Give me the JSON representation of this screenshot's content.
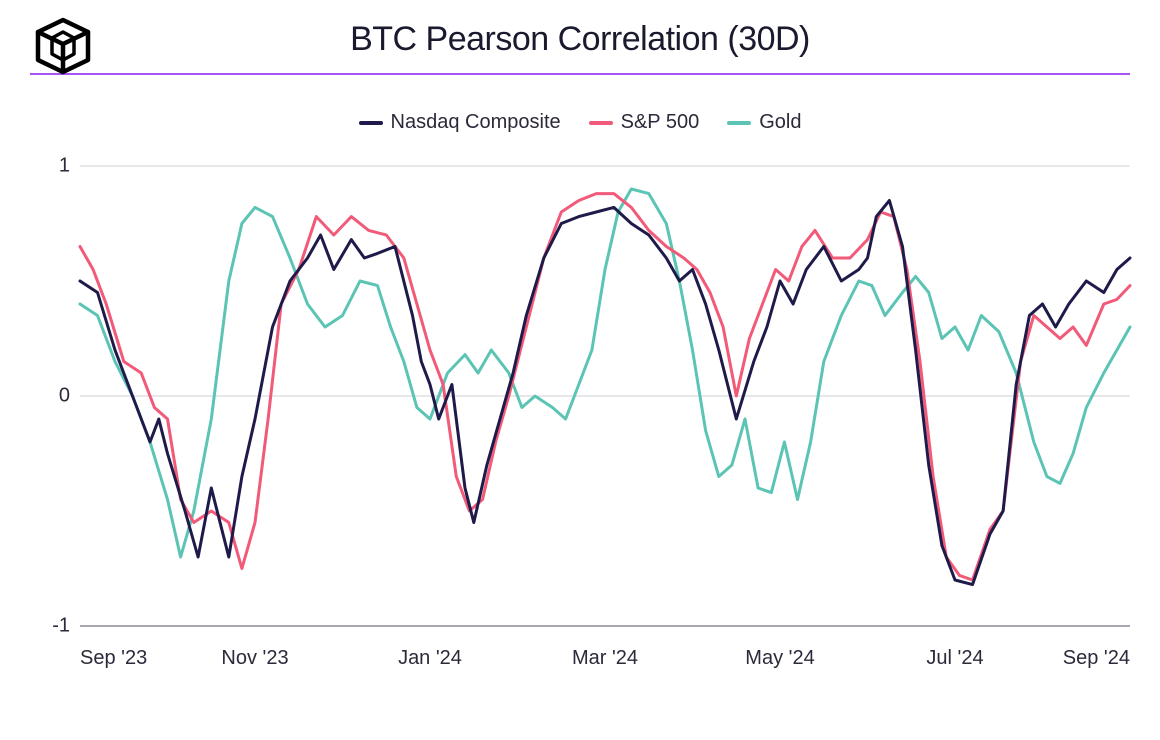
{
  "title": "BTC Pearson Correlation (30D)",
  "header_underline_color": "#a855f7",
  "legend": [
    {
      "label": "Nasdaq Composite",
      "color": "#1e1b4b"
    },
    {
      "label": "S&P 500",
      "color": "#f15a78"
    },
    {
      "label": "Gold",
      "color": "#5bc4b4"
    }
  ],
  "chart": {
    "type": "line",
    "ylim": [
      -1,
      1
    ],
    "yticks": [
      -1,
      0,
      1
    ],
    "ytick_labels": [
      "-1",
      "0",
      "1"
    ],
    "xlim": [
      0,
      12
    ],
    "xtick_positions": [
      0,
      2,
      4,
      6,
      8,
      10,
      12
    ],
    "xtick_labels": [
      "Sep '23",
      "Nov '23",
      "Jan '24",
      "Mar '24",
      "May '24",
      "Jul '24",
      "Sep '24"
    ],
    "grid_color": "#d0d0d8",
    "axis_color": "#8a8a9a",
    "background_color": "#ffffff",
    "line_width": 3,
    "title_fontsize": 34,
    "label_fontsize": 20,
    "series": [
      {
        "name": "Nasdaq Composite",
        "color": "#1e1b4b",
        "points": [
          [
            0.0,
            0.5
          ],
          [
            0.2,
            0.45
          ],
          [
            0.4,
            0.2
          ],
          [
            0.6,
            0.0
          ],
          [
            0.8,
            -0.2
          ],
          [
            0.9,
            -0.1
          ],
          [
            1.0,
            -0.25
          ],
          [
            1.2,
            -0.5
          ],
          [
            1.35,
            -0.7
          ],
          [
            1.5,
            -0.4
          ],
          [
            1.7,
            -0.7
          ],
          [
            1.85,
            -0.35
          ],
          [
            2.0,
            -0.1
          ],
          [
            2.2,
            0.3
          ],
          [
            2.4,
            0.5
          ],
          [
            2.6,
            0.6
          ],
          [
            2.75,
            0.7
          ],
          [
            2.9,
            0.55
          ],
          [
            3.1,
            0.68
          ],
          [
            3.25,
            0.6
          ],
          [
            3.4,
            0.62
          ],
          [
            3.6,
            0.65
          ],
          [
            3.8,
            0.35
          ],
          [
            3.9,
            0.15
          ],
          [
            4.0,
            0.05
          ],
          [
            4.1,
            -0.1
          ],
          [
            4.25,
            0.05
          ],
          [
            4.4,
            -0.4
          ],
          [
            4.5,
            -0.55
          ],
          [
            4.65,
            -0.3
          ],
          [
            4.8,
            -0.1
          ],
          [
            4.95,
            0.1
          ],
          [
            5.1,
            0.35
          ],
          [
            5.3,
            0.6
          ],
          [
            5.5,
            0.75
          ],
          [
            5.7,
            0.78
          ],
          [
            5.9,
            0.8
          ],
          [
            6.1,
            0.82
          ],
          [
            6.3,
            0.75
          ],
          [
            6.5,
            0.7
          ],
          [
            6.7,
            0.6
          ],
          [
            6.85,
            0.5
          ],
          [
            7.0,
            0.55
          ],
          [
            7.15,
            0.4
          ],
          [
            7.3,
            0.2
          ],
          [
            7.5,
            -0.1
          ],
          [
            7.7,
            0.15
          ],
          [
            7.85,
            0.3
          ],
          [
            8.0,
            0.5
          ],
          [
            8.15,
            0.4
          ],
          [
            8.3,
            0.55
          ],
          [
            8.5,
            0.65
          ],
          [
            8.7,
            0.5
          ],
          [
            8.9,
            0.55
          ],
          [
            9.0,
            0.6
          ],
          [
            9.1,
            0.78
          ],
          [
            9.25,
            0.85
          ],
          [
            9.4,
            0.65
          ],
          [
            9.55,
            0.2
          ],
          [
            9.7,
            -0.3
          ],
          [
            9.85,
            -0.65
          ],
          [
            10.0,
            -0.8
          ],
          [
            10.2,
            -0.82
          ],
          [
            10.4,
            -0.6
          ],
          [
            10.55,
            -0.5
          ],
          [
            10.7,
            0.05
          ],
          [
            10.85,
            0.35
          ],
          [
            11.0,
            0.4
          ],
          [
            11.15,
            0.3
          ],
          [
            11.3,
            0.4
          ],
          [
            11.5,
            0.5
          ],
          [
            11.7,
            0.45
          ],
          [
            11.85,
            0.55
          ],
          [
            12.0,
            0.6
          ]
        ]
      },
      {
        "name": "S&P 500",
        "color": "#f15a78",
        "points": [
          [
            0.0,
            0.65
          ],
          [
            0.15,
            0.55
          ],
          [
            0.3,
            0.4
          ],
          [
            0.5,
            0.15
          ],
          [
            0.7,
            0.1
          ],
          [
            0.85,
            -0.05
          ],
          [
            1.0,
            -0.1
          ],
          [
            1.15,
            -0.45
          ],
          [
            1.3,
            -0.55
          ],
          [
            1.5,
            -0.5
          ],
          [
            1.7,
            -0.55
          ],
          [
            1.85,
            -0.75
          ],
          [
            2.0,
            -0.55
          ],
          [
            2.15,
            -0.1
          ],
          [
            2.3,
            0.4
          ],
          [
            2.5,
            0.55
          ],
          [
            2.7,
            0.78
          ],
          [
            2.9,
            0.7
          ],
          [
            3.1,
            0.78
          ],
          [
            3.3,
            0.72
          ],
          [
            3.5,
            0.7
          ],
          [
            3.7,
            0.6
          ],
          [
            3.85,
            0.4
          ],
          [
            4.0,
            0.2
          ],
          [
            4.15,
            0.05
          ],
          [
            4.3,
            -0.35
          ],
          [
            4.45,
            -0.5
          ],
          [
            4.6,
            -0.45
          ],
          [
            4.75,
            -0.2
          ],
          [
            4.9,
            0.0
          ],
          [
            5.1,
            0.3
          ],
          [
            5.3,
            0.6
          ],
          [
            5.5,
            0.8
          ],
          [
            5.7,
            0.85
          ],
          [
            5.9,
            0.88
          ],
          [
            6.1,
            0.88
          ],
          [
            6.3,
            0.82
          ],
          [
            6.5,
            0.72
          ],
          [
            6.7,
            0.65
          ],
          [
            6.9,
            0.6
          ],
          [
            7.05,
            0.55
          ],
          [
            7.2,
            0.45
          ],
          [
            7.35,
            0.3
          ],
          [
            7.5,
            0.0
          ],
          [
            7.65,
            0.25
          ],
          [
            7.8,
            0.4
          ],
          [
            7.95,
            0.55
          ],
          [
            8.1,
            0.5
          ],
          [
            8.25,
            0.65
          ],
          [
            8.4,
            0.72
          ],
          [
            8.6,
            0.6
          ],
          [
            8.8,
            0.6
          ],
          [
            9.0,
            0.68
          ],
          [
            9.15,
            0.8
          ],
          [
            9.3,
            0.78
          ],
          [
            9.45,
            0.55
          ],
          [
            9.6,
            0.15
          ],
          [
            9.75,
            -0.35
          ],
          [
            9.9,
            -0.7
          ],
          [
            10.05,
            -0.78
          ],
          [
            10.2,
            -0.8
          ],
          [
            10.4,
            -0.58
          ],
          [
            10.55,
            -0.5
          ],
          [
            10.75,
            0.15
          ],
          [
            10.9,
            0.35
          ],
          [
            11.05,
            0.3
          ],
          [
            11.2,
            0.25
          ],
          [
            11.35,
            0.3
          ],
          [
            11.5,
            0.22
          ],
          [
            11.7,
            0.4
          ],
          [
            11.85,
            0.42
          ],
          [
            12.0,
            0.48
          ]
        ]
      },
      {
        "name": "Gold",
        "color": "#5bc4b4",
        "points": [
          [
            0.0,
            0.4
          ],
          [
            0.2,
            0.35
          ],
          [
            0.4,
            0.15
          ],
          [
            0.6,
            0.0
          ],
          [
            0.8,
            -0.2
          ],
          [
            1.0,
            -0.45
          ],
          [
            1.15,
            -0.7
          ],
          [
            1.3,
            -0.5
          ],
          [
            1.5,
            -0.1
          ],
          [
            1.7,
            0.5
          ],
          [
            1.85,
            0.75
          ],
          [
            2.0,
            0.82
          ],
          [
            2.2,
            0.78
          ],
          [
            2.4,
            0.6
          ],
          [
            2.6,
            0.4
          ],
          [
            2.8,
            0.3
          ],
          [
            3.0,
            0.35
          ],
          [
            3.2,
            0.5
          ],
          [
            3.4,
            0.48
          ],
          [
            3.55,
            0.3
          ],
          [
            3.7,
            0.15
          ],
          [
            3.85,
            -0.05
          ],
          [
            4.0,
            -0.1
          ],
          [
            4.2,
            0.1
          ],
          [
            4.4,
            0.18
          ],
          [
            4.55,
            0.1
          ],
          [
            4.7,
            0.2
          ],
          [
            4.9,
            0.1
          ],
          [
            5.05,
            -0.05
          ],
          [
            5.2,
            0.0
          ],
          [
            5.4,
            -0.05
          ],
          [
            5.55,
            -0.1
          ],
          [
            5.7,
            0.05
          ],
          [
            5.85,
            0.2
          ],
          [
            6.0,
            0.55
          ],
          [
            6.15,
            0.8
          ],
          [
            6.3,
            0.9
          ],
          [
            6.5,
            0.88
          ],
          [
            6.7,
            0.75
          ],
          [
            6.85,
            0.5
          ],
          [
            7.0,
            0.2
          ],
          [
            7.15,
            -0.15
          ],
          [
            7.3,
            -0.35
          ],
          [
            7.45,
            -0.3
          ],
          [
            7.6,
            -0.1
          ],
          [
            7.75,
            -0.4
          ],
          [
            7.9,
            -0.42
          ],
          [
            8.05,
            -0.2
          ],
          [
            8.2,
            -0.45
          ],
          [
            8.35,
            -0.2
          ],
          [
            8.5,
            0.15
          ],
          [
            8.7,
            0.35
          ],
          [
            8.9,
            0.5
          ],
          [
            9.05,
            0.48
          ],
          [
            9.2,
            0.35
          ],
          [
            9.4,
            0.45
          ],
          [
            9.55,
            0.52
          ],
          [
            9.7,
            0.45
          ],
          [
            9.85,
            0.25
          ],
          [
            10.0,
            0.3
          ],
          [
            10.15,
            0.2
          ],
          [
            10.3,
            0.35
          ],
          [
            10.5,
            0.28
          ],
          [
            10.7,
            0.1
          ],
          [
            10.9,
            -0.2
          ],
          [
            11.05,
            -0.35
          ],
          [
            11.2,
            -0.38
          ],
          [
            11.35,
            -0.25
          ],
          [
            11.5,
            -0.05
          ],
          [
            11.7,
            0.1
          ],
          [
            11.85,
            0.2
          ],
          [
            12.0,
            0.3
          ]
        ]
      }
    ]
  }
}
